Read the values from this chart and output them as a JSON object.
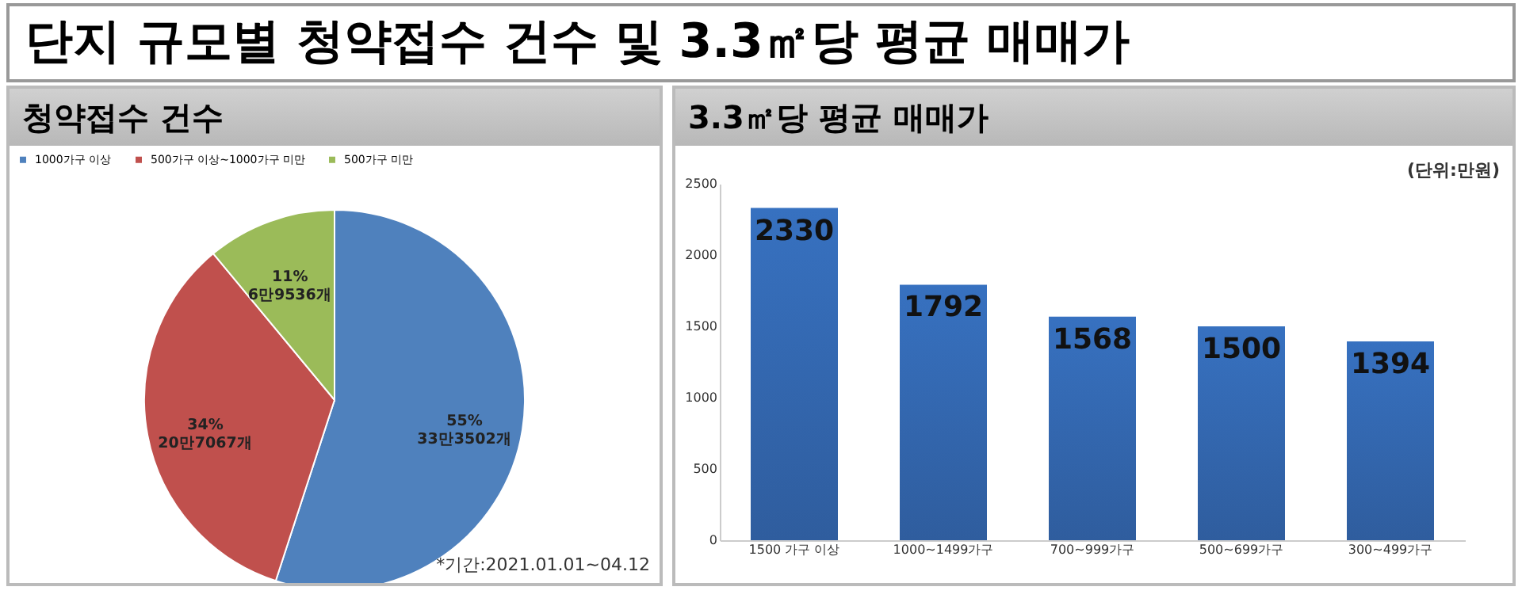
{
  "chart_data": [
    {
      "type": "pie",
      "title": "단지 규모별 청약접수 건수 및 3.3㎡당 평균 매매가",
      "subtitle": "청약접수 건수",
      "categories": [
        "1000가구 이상",
        "500가구 이상~1000가구 미만",
        "500가구 미만"
      ],
      "values": [
        55,
        34,
        11
      ],
      "colors": [
        "#4f81bd",
        "#c0504d",
        "#9bbb59"
      ],
      "value_labels": [
        "55%\n33만3502개",
        "34%\n20만7067개",
        "11%\n6만9536개"
      ],
      "legend": "top",
      "annotations": [
        "*기간:2021.01.01~04.12"
      ]
    },
    {
      "type": "bar",
      "title": "3.3㎡당 평균 매매가",
      "categories": [
        "1500 가구 이상",
        "1000~1499가구",
        "700~999가구",
        "500~699가구",
        "300~499가구"
      ],
      "values": [
        2330,
        1792,
        1568,
        1500,
        1394
      ],
      "color": "#3771c0",
      "ylim": [
        0,
        2500
      ],
      "yticks": [
        0,
        500,
        1000,
        1500,
        2000,
        2500
      ],
      "data_labels": true,
      "grid": false,
      "annotations": [
        "(단위:만원)"
      ]
    }
  ]
}
